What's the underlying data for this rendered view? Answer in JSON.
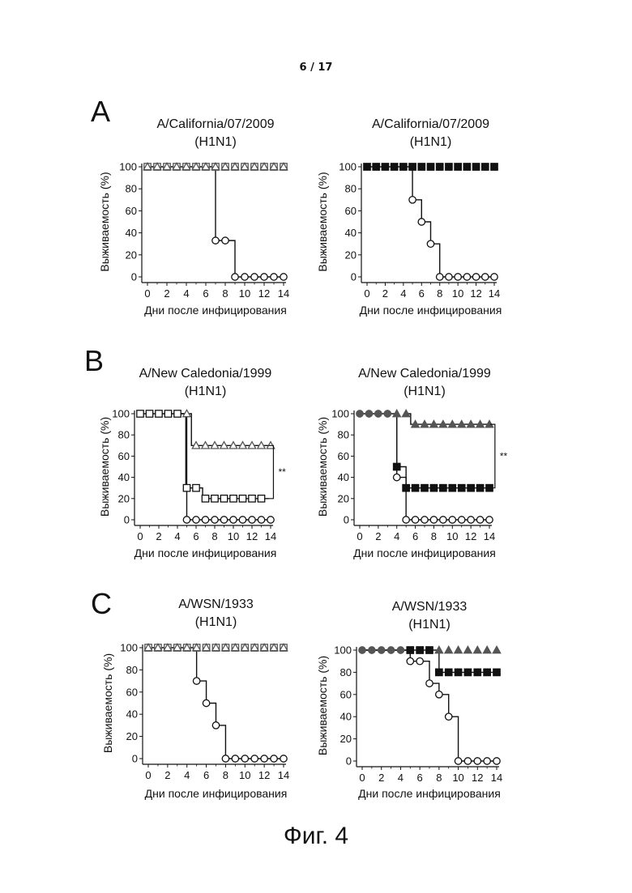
{
  "page_number": "6 / 17",
  "figure_caption": "Фиг. 4",
  "panels": [
    {
      "letter": "A"
    },
    {
      "letter": "B"
    },
    {
      "letter": "C"
    }
  ],
  "chart_data": [
    {
      "type": "line",
      "panel": "A",
      "title": "A/California/07/2009",
      "subtitle": "(H1N1)",
      "xlabel": "Дни после инфицирования",
      "ylabel": "Выживаемость (%)",
      "xlim": [
        0,
        14
      ],
      "ylim": [
        0,
        100
      ],
      "xticks": [
        0,
        2,
        4,
        6,
        8,
        10,
        12,
        14
      ],
      "yticks": [
        0,
        20,
        40,
        60,
        80,
        100
      ],
      "series": [
        {
          "marker": "open-square",
          "color": "#555555",
          "x": [
            0,
            1,
            2,
            3,
            4,
            5,
            6,
            7,
            8,
            9,
            10,
            11,
            12,
            13,
            14
          ],
          "y": [
            100,
            100,
            100,
            100,
            100,
            100,
            100,
            100,
            100,
            100,
            100,
            100,
            100,
            100,
            100
          ]
        },
        {
          "marker": "open-triangle",
          "color": "#555555",
          "x": [
            0,
            1,
            2,
            3,
            4,
            5,
            6,
            7,
            8,
            9,
            10,
            11,
            12,
            13,
            14
          ],
          "y": [
            100,
            100,
            100,
            100,
            100,
            100,
            100,
            100,
            100,
            100,
            100,
            100,
            100,
            100,
            100
          ]
        },
        {
          "marker": "open-circle",
          "color": "#111111",
          "x": [
            7,
            8,
            9,
            10,
            11,
            12,
            13,
            14
          ],
          "y": [
            33,
            33,
            0,
            0,
            0,
            0,
            0,
            0
          ]
        }
      ],
      "step_lines": [
        {
          "x": [
            0,
            7,
            7,
            9,
            9,
            14
          ],
          "y": [
            100,
            100,
            33,
            33,
            0,
            0
          ]
        }
      ],
      "significance": []
    },
    {
      "type": "line",
      "panel": "A",
      "title": "A/California/07/2009",
      "subtitle": "(H1N1)",
      "xlabel": "Дни после инфицирования",
      "ylabel": "Выживаемость (%)",
      "xlim": [
        0,
        14
      ],
      "ylim": [
        0,
        100
      ],
      "xticks": [
        0,
        2,
        4,
        6,
        8,
        10,
        12,
        14
      ],
      "yticks": [
        0,
        20,
        40,
        60,
        80,
        100
      ],
      "series": [
        {
          "marker": "filled-square",
          "color": "#111111",
          "x": [
            0,
            1,
            2,
            3,
            4,
            5,
            6,
            7,
            8,
            9,
            10,
            11,
            12,
            13,
            14
          ],
          "y": [
            100,
            100,
            100,
            100,
            100,
            100,
            100,
            100,
            100,
            100,
            100,
            100,
            100,
            100,
            100
          ]
        },
        {
          "marker": "open-circle",
          "color": "#111111",
          "x": [
            5,
            6,
            7,
            8,
            9,
            10,
            11,
            12,
            13,
            14
          ],
          "y": [
            70,
            50,
            30,
            0,
            0,
            0,
            0,
            0,
            0,
            0
          ]
        }
      ],
      "step_lines": [
        {
          "x": [
            0,
            5,
            5,
            6,
            6,
            7,
            7,
            8,
            8,
            14
          ],
          "y": [
            100,
            100,
            70,
            70,
            50,
            50,
            30,
            30,
            0,
            0
          ]
        }
      ],
      "significance": []
    },
    {
      "type": "line",
      "panel": "B",
      "title": "A/New Caledonia/1999",
      "subtitle": "(H1N1)",
      "xlabel": "Дни после инфицирования",
      "ylabel": "Выживаемость (%)",
      "xlim": [
        0,
        14
      ],
      "ylim": [
        0,
        100
      ],
      "xticks": [
        0,
        2,
        4,
        6,
        8,
        10,
        12,
        14
      ],
      "yticks": [
        0,
        20,
        40,
        60,
        80,
        100
      ],
      "series": [
        {
          "marker": "open-square",
          "color": "#111111",
          "x": [
            0,
            1,
            2,
            3,
            4,
            5,
            6,
            7,
            8,
            9,
            10,
            11,
            12,
            13
          ],
          "y": [
            100,
            100,
            100,
            100,
            100,
            30,
            30,
            20,
            20,
            20,
            20,
            20,
            20,
            20
          ]
        },
        {
          "marker": "open-triangle",
          "color": "#555555",
          "x": [
            5,
            6,
            7,
            8,
            9,
            10,
            11,
            12,
            13,
            14
          ],
          "y": [
            100,
            70,
            70,
            70,
            70,
            70,
            70,
            70,
            70,
            70
          ]
        },
        {
          "marker": "open-circle",
          "color": "#111111",
          "x": [
            5,
            6,
            7,
            8,
            9,
            10,
            11,
            12,
            13,
            14
          ],
          "y": [
            0,
            0,
            0,
            0,
            0,
            0,
            0,
            0,
            0,
            0
          ]
        }
      ],
      "step_lines": [
        {
          "x": [
            0,
            5,
            5,
            14
          ],
          "y": [
            100,
            100,
            0,
            0
          ]
        },
        {
          "x": [
            5,
            5.5,
            5.5,
            14
          ],
          "y": [
            100,
            100,
            70,
            70
          ]
        },
        {
          "x": [
            4,
            4.9,
            4.9,
            6.7,
            6.7,
            13.8
          ],
          "y": [
            100,
            100,
            30,
            30,
            20,
            20
          ]
        }
      ],
      "significance": [
        {
          "label": "**",
          "x": 14.3,
          "y1": 70,
          "y2": 20
        }
      ]
    },
    {
      "type": "line",
      "panel": "B",
      "title": "A/New Caledonia/1999",
      "subtitle": "(H1N1)",
      "xlabel": "Дни после инфицирования",
      "ylabel": "Выживаемость (%)",
      "xlim": [
        0,
        14
      ],
      "ylim": [
        0,
        100
      ],
      "xticks": [
        0,
        2,
        4,
        6,
        8,
        10,
        12,
        14
      ],
      "yticks": [
        0,
        20,
        40,
        60,
        80,
        100
      ],
      "series": [
        {
          "marker": "filled-circle",
          "color": "#555555",
          "x": [
            0,
            1,
            2,
            3
          ],
          "y": [
            100,
            100,
            100,
            100
          ]
        },
        {
          "marker": "filled-triangle",
          "color": "#555555",
          "x": [
            4,
            5,
            6,
            7,
            8,
            9,
            10,
            11,
            12,
            13,
            14
          ],
          "y": [
            100,
            100,
            90,
            90,
            90,
            90,
            90,
            90,
            90,
            90,
            90
          ]
        },
        {
          "marker": "filled-square",
          "color": "#111111",
          "x": [
            4,
            5,
            6,
            7,
            8,
            9,
            10,
            11,
            12,
            13,
            14
          ],
          "y": [
            50,
            30,
            30,
            30,
            30,
            30,
            30,
            30,
            30,
            30,
            30
          ]
        },
        {
          "marker": "open-circle",
          "color": "#111111",
          "x": [
            4,
            5,
            6,
            7,
            8,
            9,
            10,
            11,
            12,
            13,
            14
          ],
          "y": [
            40,
            0,
            0,
            0,
            0,
            0,
            0,
            0,
            0,
            0,
            0
          ]
        }
      ],
      "step_lines": [
        {
          "x": [
            0,
            4,
            4,
            5,
            5,
            14
          ],
          "y": [
            100,
            100,
            40,
            40,
            0,
            0
          ]
        },
        {
          "x": [
            4,
            4,
            5,
            5,
            14
          ],
          "y": [
            100,
            50,
            50,
            30,
            30
          ]
        },
        {
          "x": [
            5,
            5.5,
            5.5,
            14
          ],
          "y": [
            100,
            100,
            90,
            90
          ]
        }
      ],
      "significance": [
        {
          "label": "**",
          "x": 14.6,
          "y1": 90,
          "y2": 30
        }
      ]
    },
    {
      "type": "line",
      "panel": "C",
      "title": "A/WSN/1933",
      "subtitle": "(H1N1)",
      "xlabel": "Дни после инфицирования",
      "ylabel": "Выживаемость (%)",
      "xlim": [
        0,
        14
      ],
      "ylim": [
        0,
        100
      ],
      "xticks": [
        0,
        2,
        4,
        6,
        8,
        10,
        12,
        14
      ],
      "yticks": [
        0,
        20,
        40,
        60,
        80,
        100
      ],
      "series": [
        {
          "marker": "open-square",
          "color": "#555555",
          "x": [
            0,
            1,
            2,
            3,
            4,
            5,
            6,
            7,
            8,
            9,
            10,
            11,
            12,
            13,
            14
          ],
          "y": [
            100,
            100,
            100,
            100,
            100,
            100,
            100,
            100,
            100,
            100,
            100,
            100,
            100,
            100,
            100
          ]
        },
        {
          "marker": "open-triangle",
          "color": "#555555",
          "x": [
            0,
            1,
            2,
            3,
            4,
            5,
            6,
            7,
            8,
            9,
            10,
            11,
            12,
            13,
            14
          ],
          "y": [
            100,
            100,
            100,
            100,
            100,
            100,
            100,
            100,
            100,
            100,
            100,
            100,
            100,
            100,
            100
          ]
        },
        {
          "marker": "open-circle",
          "color": "#111111",
          "x": [
            5,
            6,
            7,
            8,
            9,
            10,
            11,
            12,
            13,
            14
          ],
          "y": [
            70,
            50,
            30,
            0,
            0,
            0,
            0,
            0,
            0,
            0
          ]
        }
      ],
      "step_lines": [
        {
          "x": [
            0,
            5,
            5,
            6,
            6,
            7,
            7,
            8,
            8,
            14
          ],
          "y": [
            100,
            100,
            70,
            70,
            50,
            50,
            30,
            30,
            0,
            0
          ]
        }
      ],
      "significance": []
    },
    {
      "type": "line",
      "panel": "C",
      "title": "A/WSN/1933",
      "subtitle": "(H1N1)",
      "xlabel": "Дни после инфицирования",
      "ylabel": "Выживаемость (%)",
      "xlim": [
        0,
        14
      ],
      "ylim": [
        0,
        100
      ],
      "xticks": [
        0,
        2,
        4,
        6,
        8,
        10,
        12,
        14
      ],
      "yticks": [
        0,
        20,
        40,
        60,
        80,
        100
      ],
      "series": [
        {
          "marker": "filled-circle",
          "color": "#555555",
          "x": [
            0,
            1,
            2,
            3,
            4
          ],
          "y": [
            100,
            100,
            100,
            100,
            100
          ]
        },
        {
          "marker": "filled-square",
          "color": "#111111",
          "x": [
            5,
            6,
            7,
            8,
            9,
            10,
            11,
            12,
            13,
            14
          ],
          "y": [
            100,
            100,
            100,
            80,
            80,
            80,
            80,
            80,
            80,
            80
          ]
        },
        {
          "marker": "filled-triangle",
          "color": "#555555",
          "x": [
            8,
            9,
            10,
            11,
            12,
            13,
            14
          ],
          "y": [
            100,
            100,
            100,
            100,
            100,
            100,
            100
          ]
        },
        {
          "marker": "open-circle",
          "color": "#111111",
          "x": [
            5,
            6,
            7,
            8,
            9,
            10,
            11,
            12,
            13,
            14
          ],
          "y": [
            90,
            90,
            70,
            60,
            40,
            0,
            0,
            0,
            0,
            0
          ]
        }
      ],
      "step_lines": [
        {
          "x": [
            0,
            5,
            5,
            7,
            7,
            8,
            8,
            9,
            9,
            10,
            10,
            14
          ],
          "y": [
            100,
            100,
            90,
            90,
            70,
            70,
            60,
            60,
            40,
            40,
            0,
            0
          ]
        },
        {
          "x": [
            0,
            8,
            8,
            14
          ],
          "y": [
            100,
            100,
            80,
            80
          ]
        }
      ],
      "significance": []
    }
  ]
}
